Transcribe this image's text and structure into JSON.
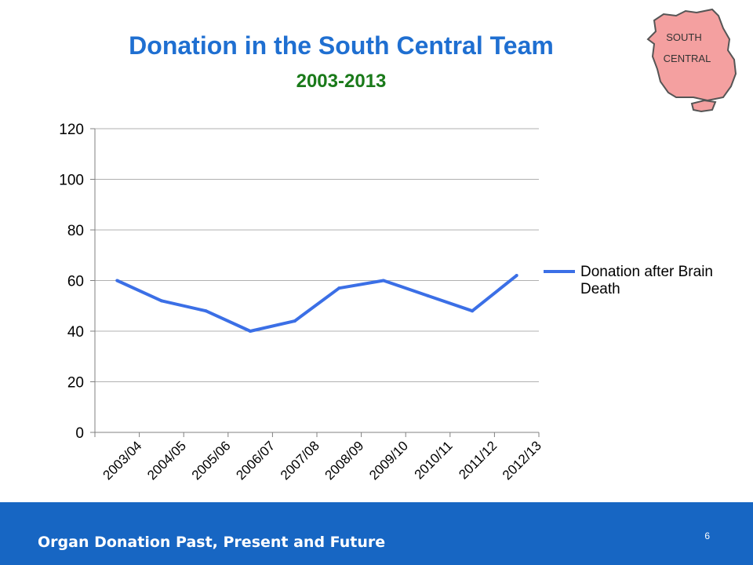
{
  "slide": {
    "title": "Donation in the South Central Team",
    "subtitle": "2003-2013",
    "region_label_line1": "SOUTH",
    "region_label_line2": "CENTRAL",
    "footer_title": "Organ Donation Past, Present and Future",
    "page_number": "6"
  },
  "colors": {
    "title": "#1f6fd1",
    "subtitle": "#1a7a1a",
    "series_line": "#3b6fe6",
    "region_fill": "#f4a0a0",
    "footer_bg": "#1766c3"
  },
  "chart_data": {
    "type": "line",
    "categories": [
      "2003/04",
      "2004/05",
      "2005/06",
      "2006/07",
      "2007/08",
      "2008/09",
      "2009/10",
      "2010/11",
      "2011/12",
      "2012/13"
    ],
    "series": [
      {
        "name": "Donation after Brain Death",
        "values": [
          60,
          52,
          48,
          40,
          44,
          57,
          60,
          54,
          48,
          62
        ]
      }
    ],
    "y_ticks": [
      "0",
      "20",
      "40",
      "60",
      "80",
      "100",
      "120"
    ],
    "ylim": [
      0,
      120
    ],
    "grid": "horizontal",
    "legend_position": "right"
  }
}
